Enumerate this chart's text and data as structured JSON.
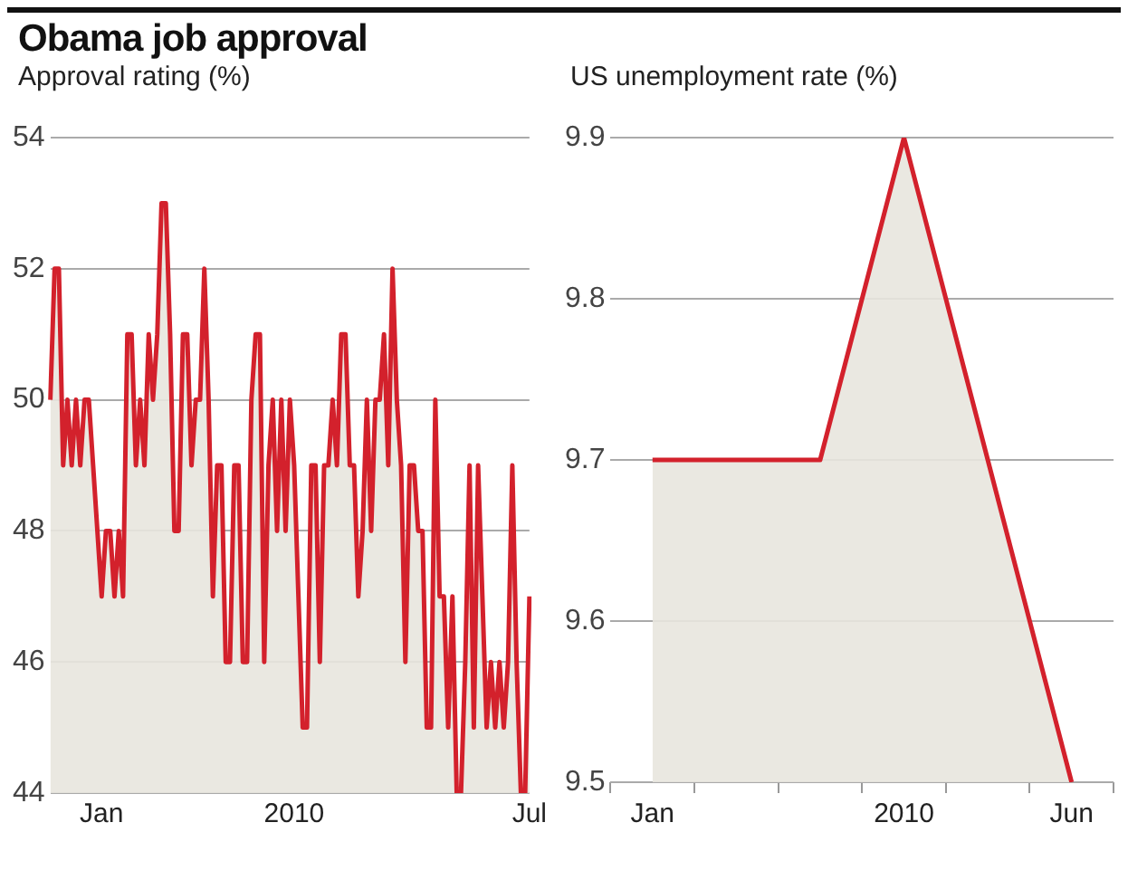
{
  "chart_data": [
    {
      "type": "area",
      "title": "Obama job approval",
      "ylabel": "Approval rating (%)",
      "color": "#d3212c",
      "grid": "y",
      "ylim": [
        44,
        54
      ],
      "yticks": [
        44,
        46,
        48,
        50,
        52,
        54
      ],
      "categories": [
        null,
        null,
        null,
        null,
        null,
        null,
        null,
        null,
        null,
        null,
        null,
        null,
        "Jan",
        null,
        null,
        null,
        null,
        null,
        null,
        null,
        null,
        null,
        null,
        null,
        null,
        null,
        null,
        null,
        null,
        null,
        null,
        null,
        null,
        null,
        null,
        null,
        null,
        null,
        null,
        null,
        null,
        null,
        null,
        null,
        null,
        null,
        null,
        null,
        null,
        null,
        null,
        null,
        null,
        null,
        null,
        null,
        null,
        "2010",
        null,
        null,
        null,
        null,
        null,
        null,
        null,
        null,
        null,
        null,
        null,
        null,
        null,
        null,
        null,
        null,
        null,
        null,
        null,
        null,
        null,
        null,
        null,
        null,
        null,
        null,
        null,
        null,
        null,
        null,
        null,
        null,
        null,
        null,
        null,
        null,
        null,
        null,
        null,
        null,
        null,
        null,
        null,
        null,
        null,
        null,
        null,
        null,
        null,
        null,
        null,
        null,
        null,
        null,
        "Jul"
      ],
      "values": [
        50,
        52,
        52,
        49,
        50,
        49,
        50,
        49,
        50,
        50,
        49,
        48,
        47,
        48,
        48,
        47,
        48,
        47,
        51,
        51,
        49,
        50,
        49,
        51,
        50,
        51,
        53,
        53,
        51,
        48,
        48,
        51,
        51,
        49,
        50,
        50,
        52,
        50,
        47,
        49,
        49,
        46,
        46,
        49,
        49,
        46,
        46,
        50,
        51,
        51,
        46,
        49,
        50,
        48,
        50,
        48,
        50,
        49,
        47,
        45,
        45,
        49,
        49,
        46,
        49,
        49,
        50,
        49,
        51,
        51,
        49,
        49,
        47,
        48,
        50,
        48,
        50,
        50,
        51,
        49,
        52,
        50,
        49,
        46,
        49,
        49,
        48,
        48,
        45,
        45,
        50,
        47,
        47,
        45,
        47,
        44,
        44,
        46,
        49,
        45,
        49,
        47,
        45,
        46,
        45,
        46,
        45,
        46,
        49,
        46,
        44,
        44,
        47
      ]
    },
    {
      "type": "area",
      "ylabel": "US unemployment rate (%)",
      "color": "#d3212c",
      "grid": "y",
      "ylim": [
        9.5,
        9.9
      ],
      "yticks": [
        9.5,
        9.6,
        9.7,
        9.8,
        9.9
      ],
      "categories": [
        "Jan",
        null,
        null,
        "2010",
        null,
        "Jun"
      ],
      "values": [
        9.7,
        9.7,
        9.7,
        9.9,
        9.7,
        9.5
      ]
    }
  ]
}
